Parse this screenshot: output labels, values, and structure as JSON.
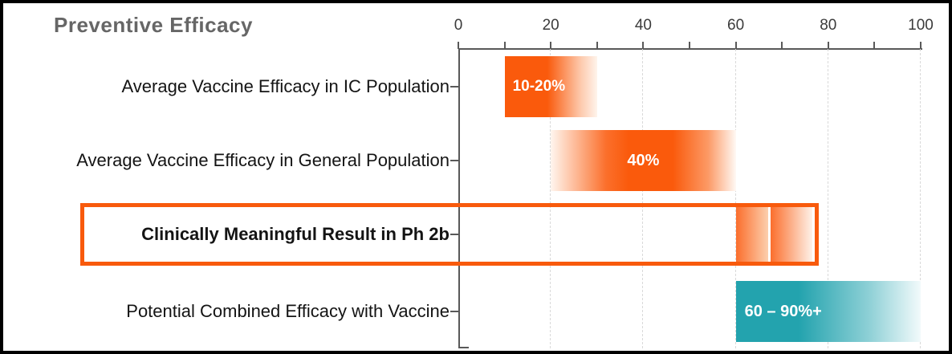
{
  "title": "Preventive Efficacy",
  "axis": {
    "tick_labels": [
      "0",
      "20",
      "40",
      "60",
      "80",
      "100"
    ],
    "min": 0,
    "max": 100,
    "minor_step": 10
  },
  "colors": {
    "orange": "#FA5A0C",
    "orange_segment": "#FB6E2C",
    "teal": "#23A3AE",
    "highlight_border": "#F85A0C",
    "title_gray": "#666666",
    "axis_gray": "#595959",
    "gridline_gray": "#D9D9D9"
  },
  "chart_data": {
    "type": "bar",
    "orientation": "horizontal",
    "title": "Preventive Efficacy",
    "xlabel": "",
    "ylabel": "",
    "xlim": [
      0,
      100
    ],
    "x_ticks": [
      0,
      20,
      40,
      60,
      80,
      100
    ],
    "x_minor_ticks": [
      0,
      10,
      20,
      30,
      40,
      50,
      60,
      70,
      80,
      90,
      100
    ],
    "grid": "vertical-dashed",
    "legend": "none",
    "bars": [
      {
        "category": "Average Vaccine Efficacy in IC Population",
        "range": [
          10,
          30
        ],
        "label": "10-20%",
        "color": "#FA5A0C",
        "fade": "right",
        "highlighted": false
      },
      {
        "category": "Average Vaccine Efficacy in General Population",
        "range": [
          20,
          60
        ],
        "label": "40%",
        "color": "#FA5A0C",
        "fade": "both-edges",
        "highlighted": false
      },
      {
        "category": "Clinically Meaningful Result in Ph 2b",
        "segments": [
          [
            60,
            67
          ],
          [
            67,
            76
          ]
        ],
        "label": "",
        "color": "#FB6E2C",
        "fade": "right-per-segment",
        "highlighted": true
      },
      {
        "category": "Potential Combined Efficacy with Vaccine",
        "range": [
          60,
          100
        ],
        "label": "60 – 90%+",
        "color": "#23A3AE",
        "fade": "right",
        "highlighted": false
      }
    ]
  }
}
